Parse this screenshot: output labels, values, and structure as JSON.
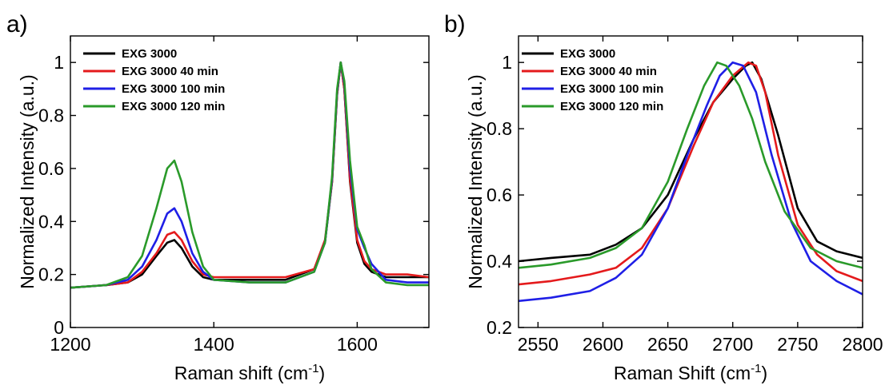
{
  "chart_data": [
    {
      "type": "line",
      "panel_label": "a)",
      "xlabel": "Raman shift (cm",
      "xlabel_sup": "-1",
      "xlabel_end": ")",
      "ylabel": "Normalized Intensity (a.u.)",
      "xlim": [
        1200,
        1700
      ],
      "ylim": [
        0,
        1.1
      ],
      "xticks": [
        1200,
        1400,
        1600
      ],
      "xtick_labels": [
        "1200",
        "1400",
        "1600"
      ],
      "yticks": [
        0,
        0.2,
        0.4,
        0.6,
        0.8,
        1
      ],
      "ytick_labels": [
        "0",
        "0.2",
        "0.4",
        "0.6",
        "0.8",
        "1"
      ],
      "legend_position": "top-left",
      "series": [
        {
          "name": "EXG 3000",
          "color": "#000000",
          "x": [
            1200,
            1250,
            1280,
            1300,
            1320,
            1335,
            1345,
            1355,
            1370,
            1385,
            1400,
            1450,
            1500,
            1540,
            1555,
            1565,
            1572,
            1577,
            1582,
            1590,
            1600,
            1610,
            1620,
            1640,
            1670,
            1700
          ],
          "y": [
            0.15,
            0.16,
            0.17,
            0.2,
            0.27,
            0.32,
            0.33,
            0.3,
            0.23,
            0.19,
            0.18,
            0.18,
            0.18,
            0.22,
            0.32,
            0.55,
            0.88,
            1.0,
            0.9,
            0.55,
            0.32,
            0.24,
            0.21,
            0.19,
            0.19,
            0.19
          ]
        },
        {
          "name": "EXG 3000 40 min",
          "color": "#e41a1c",
          "x": [
            1200,
            1250,
            1280,
            1300,
            1320,
            1335,
            1345,
            1355,
            1370,
            1385,
            1400,
            1450,
            1500,
            1540,
            1555,
            1565,
            1572,
            1577,
            1582,
            1590,
            1600,
            1610,
            1620,
            1640,
            1670,
            1700
          ],
          "y": [
            0.15,
            0.16,
            0.17,
            0.21,
            0.28,
            0.35,
            0.36,
            0.33,
            0.25,
            0.2,
            0.19,
            0.19,
            0.19,
            0.22,
            0.33,
            0.55,
            0.88,
            1.0,
            0.9,
            0.56,
            0.33,
            0.25,
            0.22,
            0.2,
            0.2,
            0.19
          ]
        },
        {
          "name": "EXG 3000 100 min",
          "color": "#1f1fe6",
          "x": [
            1200,
            1250,
            1280,
            1300,
            1320,
            1335,
            1345,
            1355,
            1370,
            1385,
            1400,
            1450,
            1500,
            1540,
            1555,
            1565,
            1572,
            1577,
            1582,
            1590,
            1600,
            1610,
            1620,
            1640,
            1670,
            1700
          ],
          "y": [
            0.15,
            0.16,
            0.18,
            0.23,
            0.33,
            0.43,
            0.45,
            0.4,
            0.28,
            0.21,
            0.18,
            0.17,
            0.17,
            0.21,
            0.32,
            0.56,
            0.89,
            1.0,
            0.92,
            0.6,
            0.37,
            0.3,
            0.24,
            0.18,
            0.17,
            0.17
          ]
        },
        {
          "name": "EXG 3000 120 min",
          "color": "#2a9a2a",
          "x": [
            1200,
            1250,
            1280,
            1300,
            1320,
            1335,
            1345,
            1355,
            1370,
            1385,
            1400,
            1450,
            1500,
            1540,
            1555,
            1565,
            1572,
            1577,
            1582,
            1590,
            1600,
            1610,
            1620,
            1640,
            1670,
            1700
          ],
          "y": [
            0.15,
            0.16,
            0.19,
            0.27,
            0.45,
            0.6,
            0.63,
            0.55,
            0.36,
            0.23,
            0.18,
            0.17,
            0.17,
            0.21,
            0.32,
            0.57,
            0.9,
            1.0,
            0.93,
            0.63,
            0.38,
            0.31,
            0.22,
            0.17,
            0.16,
            0.16
          ]
        }
      ]
    },
    {
      "type": "line",
      "panel_label": "b)",
      "xlabel": "Raman Shift (cm",
      "xlabel_sup": "-1",
      "xlabel_end": ")",
      "ylabel": "Normalized Intensity (a.u.)",
      "xlim": [
        2535,
        2800
      ],
      "ylim": [
        0.2,
        1.08
      ],
      "xticks": [
        2550,
        2600,
        2650,
        2700,
        2750,
        2800
      ],
      "xtick_labels": [
        "2550",
        "2600",
        "2650",
        "2700",
        "2750",
        "2800"
      ],
      "yticks": [
        0.2,
        0.4,
        0.6,
        0.8,
        1
      ],
      "ytick_labels": [
        "0.2",
        "0.4",
        "0.6",
        "0.8",
        "1"
      ],
      "legend_position": "top-left",
      "series": [
        {
          "name": "EXG 3000",
          "color": "#000000",
          "x": [
            2535,
            2560,
            2590,
            2610,
            2630,
            2650,
            2670,
            2685,
            2700,
            2710,
            2715,
            2722,
            2735,
            2750,
            2765,
            2780,
            2800
          ],
          "y": [
            0.4,
            0.41,
            0.42,
            0.45,
            0.5,
            0.6,
            0.77,
            0.88,
            0.95,
            0.99,
            1.0,
            0.95,
            0.78,
            0.56,
            0.46,
            0.43,
            0.41
          ]
        },
        {
          "name": "EXG 3000 40 min",
          "color": "#e41a1c",
          "x": [
            2535,
            2560,
            2590,
            2610,
            2630,
            2650,
            2670,
            2685,
            2700,
            2712,
            2718,
            2725,
            2735,
            2750,
            2765,
            2780,
            2800
          ],
          "y": [
            0.33,
            0.34,
            0.36,
            0.38,
            0.44,
            0.56,
            0.75,
            0.88,
            0.96,
            1.0,
            0.99,
            0.91,
            0.72,
            0.51,
            0.42,
            0.37,
            0.34
          ]
        },
        {
          "name": "EXG 3000 100 min",
          "color": "#1f1fe6",
          "x": [
            2535,
            2560,
            2590,
            2610,
            2630,
            2650,
            2665,
            2680,
            2690,
            2700,
            2708,
            2718,
            2730,
            2745,
            2760,
            2780,
            2800
          ],
          "y": [
            0.28,
            0.29,
            0.31,
            0.35,
            0.42,
            0.56,
            0.72,
            0.87,
            0.96,
            1.0,
            0.99,
            0.91,
            0.72,
            0.52,
            0.4,
            0.34,
            0.3
          ]
        },
        {
          "name": "EXG 3000 120 min",
          "color": "#2a9a2a",
          "x": [
            2535,
            2560,
            2590,
            2610,
            2630,
            2650,
            2665,
            2678,
            2688,
            2695,
            2705,
            2715,
            2725,
            2740,
            2760,
            2780,
            2800
          ],
          "y": [
            0.38,
            0.39,
            0.41,
            0.44,
            0.5,
            0.64,
            0.8,
            0.93,
            1.0,
            0.99,
            0.93,
            0.83,
            0.7,
            0.55,
            0.44,
            0.4,
            0.38
          ]
        }
      ]
    }
  ]
}
